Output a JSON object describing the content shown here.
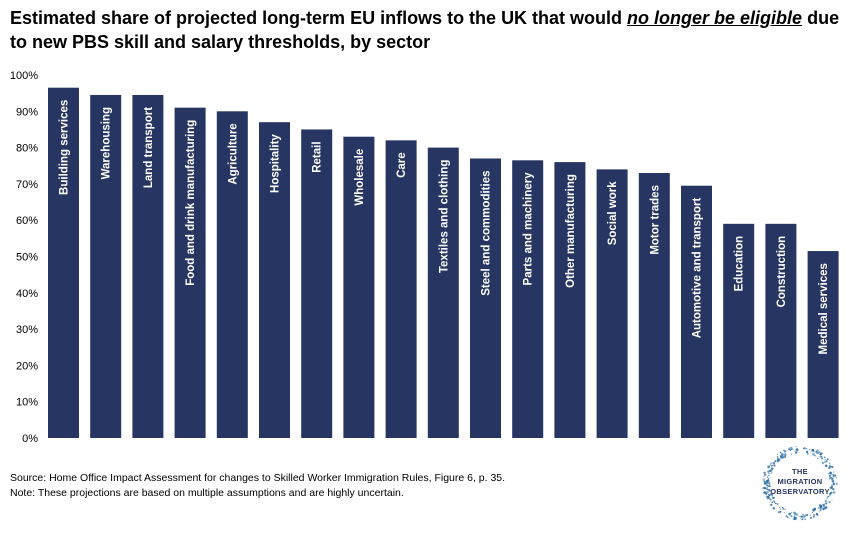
{
  "title": {
    "part1": "Estimated share of projected long-term EU inflows to the UK that would ",
    "emphasis": "no longer be eligible",
    "part2": " due to new PBS skill and salary thresholds, by sector"
  },
  "footer": {
    "source": "Source: Home Office Impact Assessment for changes to Skilled Worker Immigration Rules, Figure 6, p. 35.",
    "note": "Note: These projections are based on multiple assumptions and are highly uncertain."
  },
  "logo": {
    "line1": "THE",
    "line2": "MIGRATION",
    "line3": "OBSERVATORY"
  },
  "colors": {
    "bar": "#263561",
    "logo_dots": "#2f6fa8"
  },
  "chart_data": {
    "type": "bar",
    "categories": [
      "Building services",
      "Warehousing",
      "Land transport",
      "Food and drink manufacturing",
      "Agriculture",
      "Hospitality",
      "Retail",
      "Wholesale",
      "Care",
      "Textiles and clothing",
      "Steel and commodities",
      "Parts and machinery",
      "Other manufacturing",
      "Social work",
      "Motor trades",
      "Automotive and transport",
      "Education",
      "Construction",
      "Medical services"
    ],
    "values": [
      96.5,
      94.5,
      94.5,
      91,
      90,
      87,
      85,
      83,
      82,
      80,
      77,
      76.5,
      76,
      74,
      73,
      69.5,
      59,
      59,
      51.5
    ],
    "yticks": [
      "0%",
      "10%",
      "20%",
      "30%",
      "40%",
      "50%",
      "60%",
      "70%",
      "80%",
      "90%",
      "100%"
    ],
    "ylim": [
      0,
      100
    ],
    "title": "Estimated share of projected long-term EU inflows to the UK that would no longer be eligible due to new PBS skill and salary thresholds, by sector",
    "xlabel": "",
    "ylabel": "",
    "grid": false,
    "legend": "none"
  }
}
